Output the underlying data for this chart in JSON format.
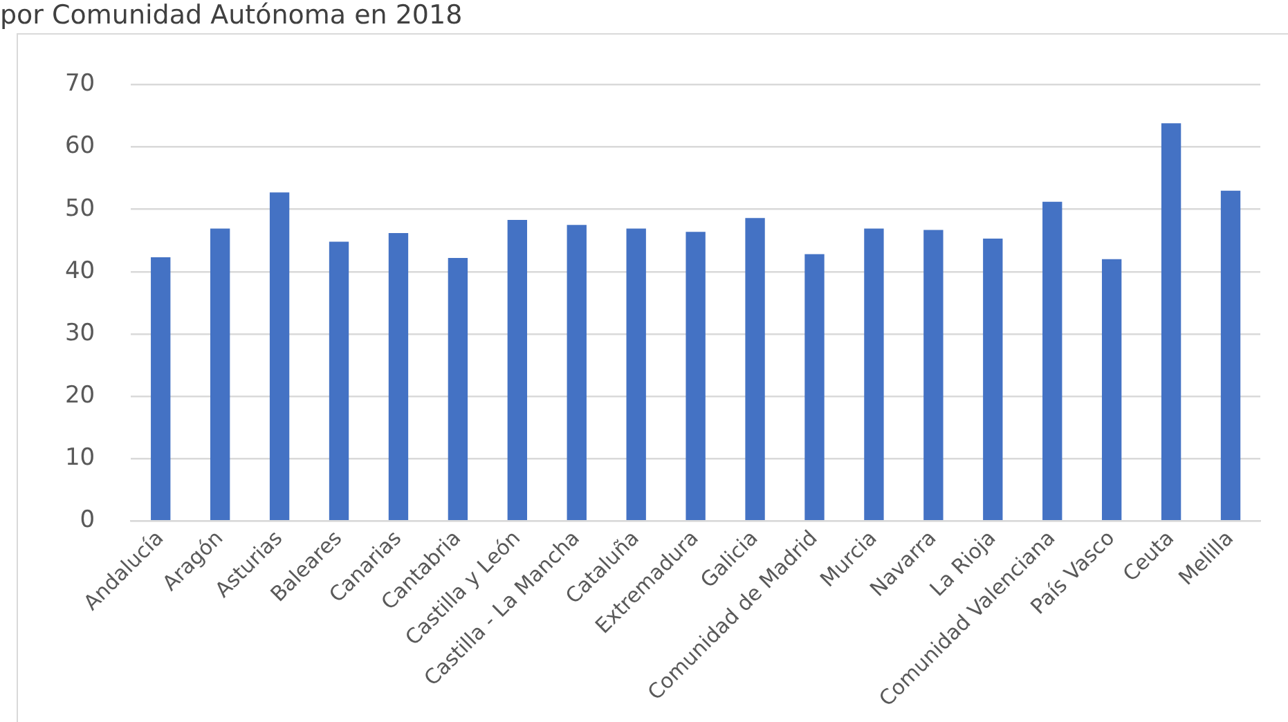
{
  "chart_data": {
    "type": "bar",
    "title": "por Comunidad Autónoma en 2018",
    "categories": [
      "Andalucía",
      "Aragón",
      "Asturias",
      "Baleares",
      "Canarias",
      "Cantabria",
      "Castilla y León",
      "Castilla - La Mancha",
      "Cataluña",
      "Extremadura",
      "Galicia",
      "Comunidad de Madrid",
      "Murcia",
      "Navarra",
      "La Rioja",
      "Comunidad Valenciana",
      "País Vasco",
      "Ceuta",
      "Melilla"
    ],
    "values": [
      42.3,
      46.9,
      52.7,
      44.8,
      46.2,
      42.2,
      48.3,
      47.5,
      46.9,
      46.4,
      48.6,
      42.8,
      46.9,
      46.7,
      45.3,
      51.2,
      42.0,
      63.8,
      53.0
    ],
    "color": "#4472c4",
    "ylim": [
      0,
      70
    ],
    "yticks": [
      0,
      10,
      20,
      30,
      40,
      50,
      60,
      70
    ],
    "grid": "y"
  }
}
